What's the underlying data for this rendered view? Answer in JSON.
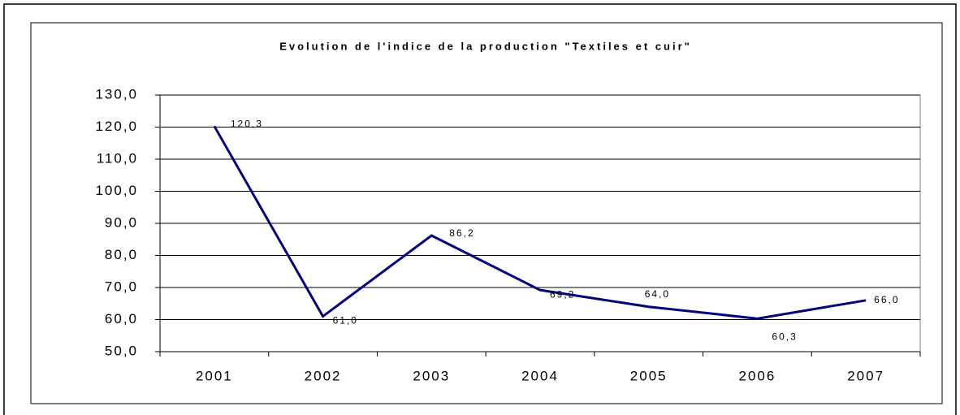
{
  "chart_data": {
    "type": "line",
    "title": "Evolution de l'indice de la production \"Textiles et cuir\"",
    "categories": [
      "2001",
      "2002",
      "2003",
      "2004",
      "2005",
      "2006",
      "2007"
    ],
    "series": [
      {
        "name": "Textiles et cuir",
        "color": "#000080",
        "values": [
          120.3,
          61.0,
          86.2,
          69.2,
          64.0,
          60.3,
          66.0
        ],
        "value_labels": [
          "120,3",
          "61,0",
          "86,2",
          "69,2",
          "64,0",
          "60,3",
          "66,0"
        ]
      }
    ],
    "ylim": [
      50,
      130
    ],
    "yticks": [
      {
        "value": 50,
        "label": "50,0"
      },
      {
        "value": 60,
        "label": "60,0"
      },
      {
        "value": 70,
        "label": "70,0"
      },
      {
        "value": 80,
        "label": "80,0"
      },
      {
        "value": 90,
        "label": "90,0"
      },
      {
        "value": 100,
        "label": "100,0"
      },
      {
        "value": 110,
        "label": "110,0"
      },
      {
        "value": 120,
        "label": "120,0"
      },
      {
        "value": 130,
        "label": "130,0"
      }
    ],
    "grid": true
  }
}
